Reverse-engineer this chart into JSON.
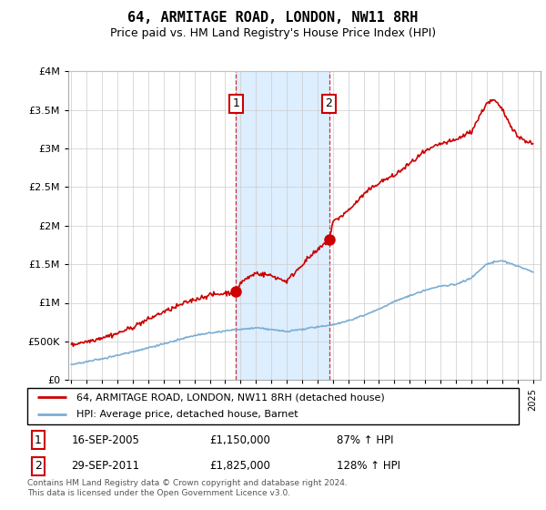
{
  "title": "64, ARMITAGE ROAD, LONDON, NW11 8RH",
  "subtitle": "Price paid vs. HM Land Registry's House Price Index (HPI)",
  "legend_line1": "64, ARMITAGE ROAD, LONDON, NW11 8RH (detached house)",
  "legend_line2": "HPI: Average price, detached house, Barnet",
  "footnote": "Contains HM Land Registry data © Crown copyright and database right 2024.\nThis data is licensed under the Open Government Licence v3.0.",
  "sale1_date": "16-SEP-2005",
  "sale1_price": "£1,150,000",
  "sale1_hpi": "87% ↑ HPI",
  "sale2_date": "29-SEP-2011",
  "sale2_price": "£1,825,000",
  "sale2_hpi": "128% ↑ HPI",
  "red_color": "#cc0000",
  "blue_color": "#7aadd4",
  "shade_color": "#ddeeff",
  "marker_box_color": "#cc0000",
  "grid_color": "#cccccc",
  "ylim": [
    0,
    4000000
  ],
  "yticks": [
    0,
    500000,
    1000000,
    1500000,
    2000000,
    2500000,
    3000000,
    3500000,
    4000000
  ],
  "sale1_x": 2005.7,
  "sale1_y": 1150000,
  "sale2_x": 2011.75,
  "sale2_y": 1825000,
  "xmin": 1994.8,
  "xmax": 2025.5,
  "red_years": [
    1995,
    1996,
    1997,
    1998,
    1999,
    2000,
    2001,
    2002,
    2003,
    2004,
    2005.7,
    2006,
    2007,
    2008,
    2009,
    2010,
    2011.75,
    2012,
    2013,
    2014,
    2015,
    2016,
    2017,
    2018,
    2019,
    2020,
    2021,
    2022,
    2022.5,
    2023,
    2024,
    2025
  ],
  "red_vals": [
    450000,
    500000,
    560000,
    620000,
    700000,
    800000,
    900000,
    980000,
    1060000,
    1120000,
    1150000,
    1270000,
    1400000,
    1350000,
    1280000,
    1500000,
    1825000,
    2050000,
    2200000,
    2400000,
    2550000,
    2650000,
    2800000,
    2950000,
    3050000,
    3100000,
    3200000,
    3580000,
    3620000,
    3500000,
    3150000,
    3050000
  ],
  "blue_years": [
    1995,
    1996,
    1997,
    1998,
    1999,
    2000,
    2001,
    2002,
    2003,
    2004,
    2005,
    2006,
    2007,
    2008,
    2009,
    2010,
    2011,
    2012,
    2013,
    2014,
    2015,
    2016,
    2017,
    2018,
    2019,
    2020,
    2021,
    2022,
    2023,
    2024,
    2025
  ],
  "blue_vals": [
    200000,
    230000,
    270000,
    310000,
    360000,
    410000,
    460000,
    510000,
    560000,
    590000,
    620000,
    640000,
    660000,
    640000,
    610000,
    640000,
    670000,
    700000,
    750000,
    820000,
    900000,
    1000000,
    1080000,
    1150000,
    1200000,
    1220000,
    1300000,
    1480000,
    1520000,
    1450000,
    1370000
  ]
}
